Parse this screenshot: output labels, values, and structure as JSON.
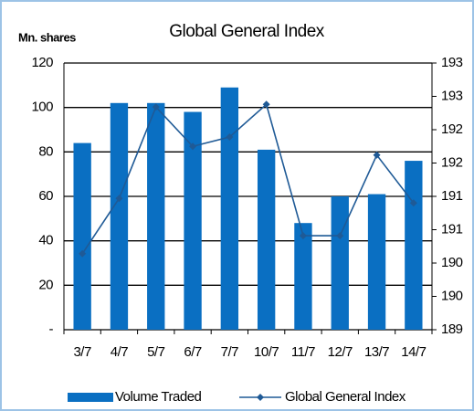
{
  "chart_data": {
    "type": "bar_line",
    "title": "Global General Index",
    "y_label": "Mn. shares",
    "categories": [
      "3/7",
      "4/7",
      "5/7",
      "6/7",
      "7/7",
      "10/7",
      "11/7",
      "12/7",
      "13/7",
      "14/7"
    ],
    "series": [
      {
        "name": "Volume Traded",
        "color": "#0a6fc2",
        "type": "bar",
        "values": [
          84,
          102,
          102,
          98,
          109,
          81,
          48,
          60,
          61,
          76
        ]
      },
      {
        "name": "Global General Index",
        "color": "#1f5a96",
        "type": "line",
        "axis": "y2",
        "values": [
          190.14,
          190.97,
          192.34,
          191.75,
          191.89,
          192.38,
          190.41,
          190.41,
          191.62,
          190.9
        ]
      }
    ],
    "ylim": [
      0,
      120
    ],
    "yticks": [
      {
        "value": 0,
        "label": "-"
      },
      20,
      40,
      60,
      80,
      100,
      120
    ],
    "y2lim": [
      189,
      193
    ],
    "y2ticks": [
      189,
      {
        "value": 189.5,
        "label": "190"
      },
      190,
      {
        "value": 190.5,
        "label": "191"
      },
      191,
      {
        "value": 191.5,
        "label": "192"
      },
      192,
      {
        "value": 192.5,
        "label": "193"
      },
      193
    ],
    "grid": true,
    "legend": "bottom"
  }
}
